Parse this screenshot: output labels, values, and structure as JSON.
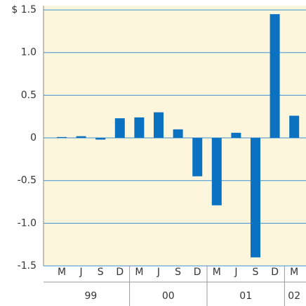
{
  "chart_data": {
    "type": "bar",
    "categories": [
      "M",
      "J",
      "S",
      "D",
      "M",
      "J",
      "S",
      "D",
      "M",
      "J",
      "S",
      "D",
      "M"
    ],
    "years": [
      "99",
      "99",
      "99",
      "99",
      "00",
      "00",
      "00",
      "00",
      "01",
      "01",
      "01",
      "01",
      "02"
    ],
    "values": [
      0.01,
      0.02,
      -0.02,
      0.23,
      0.24,
      0.3,
      0.1,
      -0.45,
      -0.79,
      0.06,
      -1.4,
      1.45,
      0.26
    ],
    "color": "#0b72c1",
    "ylim": [
      -1.5,
      1.55
    ],
    "yticks": [
      {
        "value": 1.5,
        "label": "$ 1.5"
      },
      {
        "value": 1.0,
        "label": "1.0"
      },
      0.5,
      0,
      -0.5,
      {
        "value": -1.0,
        "label": "-1.0"
      },
      -1.5
    ],
    "grid": true
  }
}
